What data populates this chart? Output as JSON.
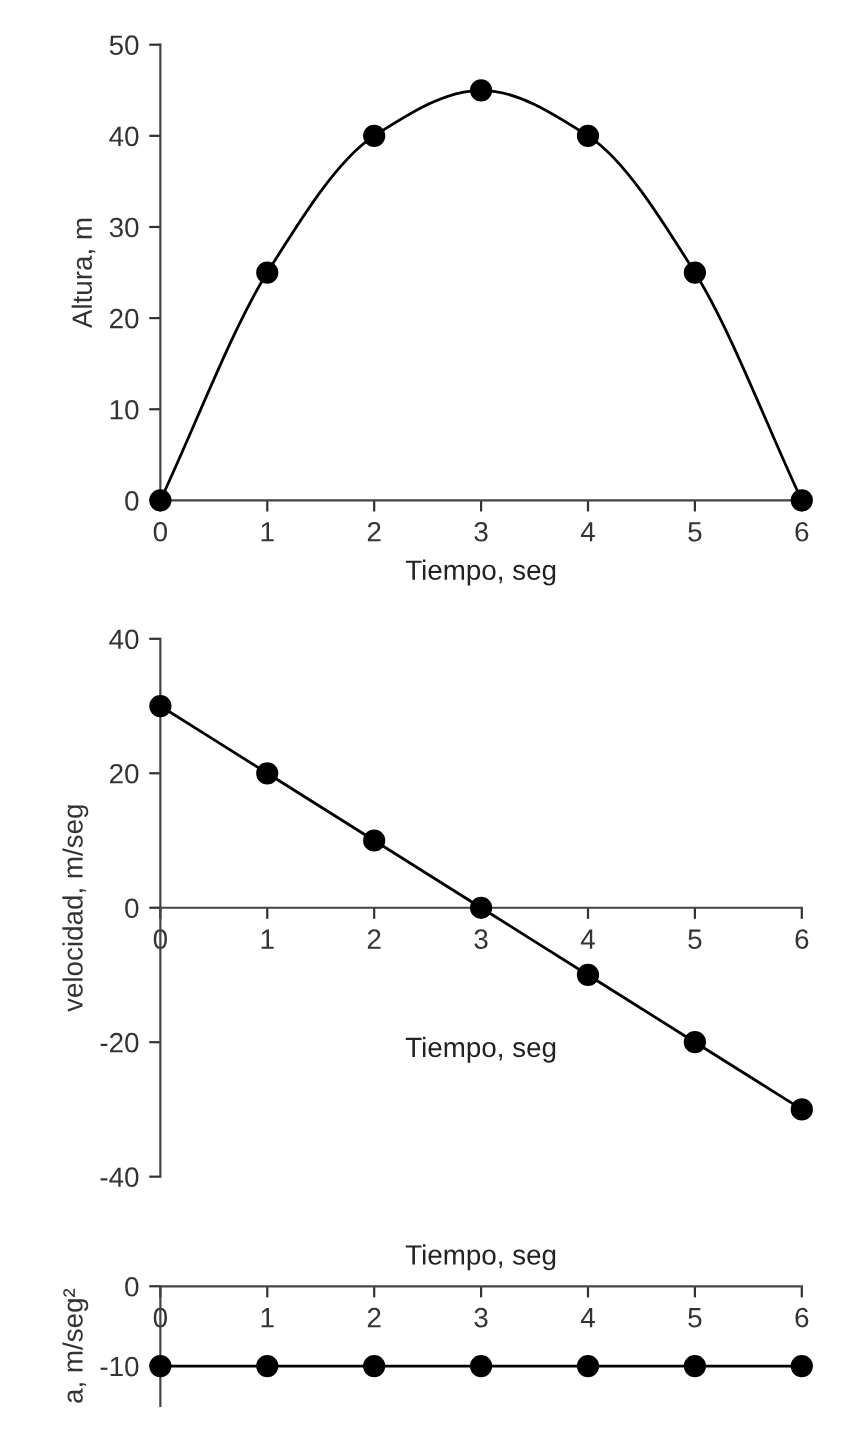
{
  "chart_data": [
    {
      "type": "line",
      "ylabel": "Altura, m",
      "xlabel": "Tiempo, seg",
      "x": [
        0,
        1,
        2,
        3,
        4,
        5,
        6
      ],
      "series": [
        {
          "color": "#000000",
          "values": [
            0,
            25,
            40,
            45,
            40,
            25,
            0
          ]
        }
      ],
      "xlim": [
        0,
        6
      ],
      "xticks": [
        0,
        1,
        2,
        3,
        4,
        5,
        6
      ],
      "ylim": [
        0,
        50
      ],
      "yticks": [
        0,
        10,
        20,
        30,
        40,
        50
      ],
      "marker": "circle",
      "line_style": "solid",
      "grid": false,
      "legend": false
    },
    {
      "type": "line",
      "ylabel": "velocidad, m/seg",
      "xlabel": "Tiempo, seg",
      "x": [
        0,
        1,
        2,
        3,
        4,
        5,
        6
      ],
      "series": [
        {
          "color": "#000000",
          "values": [
            30,
            20,
            10,
            0,
            -10,
            -20,
            -30
          ]
        }
      ],
      "xlim": [
        0,
        6
      ],
      "xticks": [
        0,
        1,
        2,
        3,
        4,
        5,
        6
      ],
      "ylim": [
        -40,
        40
      ],
      "yticks": [
        -40,
        -20,
        0,
        20,
        40
      ],
      "marker": "circle",
      "line_style": "solid",
      "grid": false,
      "legend": false
    },
    {
      "type": "line",
      "ylabel": "a, m/seg²",
      "xlabel": "Tiempo, seg",
      "x": [
        0,
        1,
        2,
        3,
        4,
        5,
        6
      ],
      "series": [
        {
          "color": "#000000",
          "values": [
            -10,
            -10,
            -10,
            -10,
            -10,
            -10,
            -10
          ]
        }
      ],
      "xlim": [
        0,
        6
      ],
      "xticks": [
        0,
        1,
        2,
        3,
        4,
        5,
        6
      ],
      "ylim": [
        -15,
        0
      ],
      "yticks": [
        -10,
        0
      ],
      "marker": "circle",
      "line_style": "solid",
      "grid": false,
      "legend": false
    }
  ]
}
